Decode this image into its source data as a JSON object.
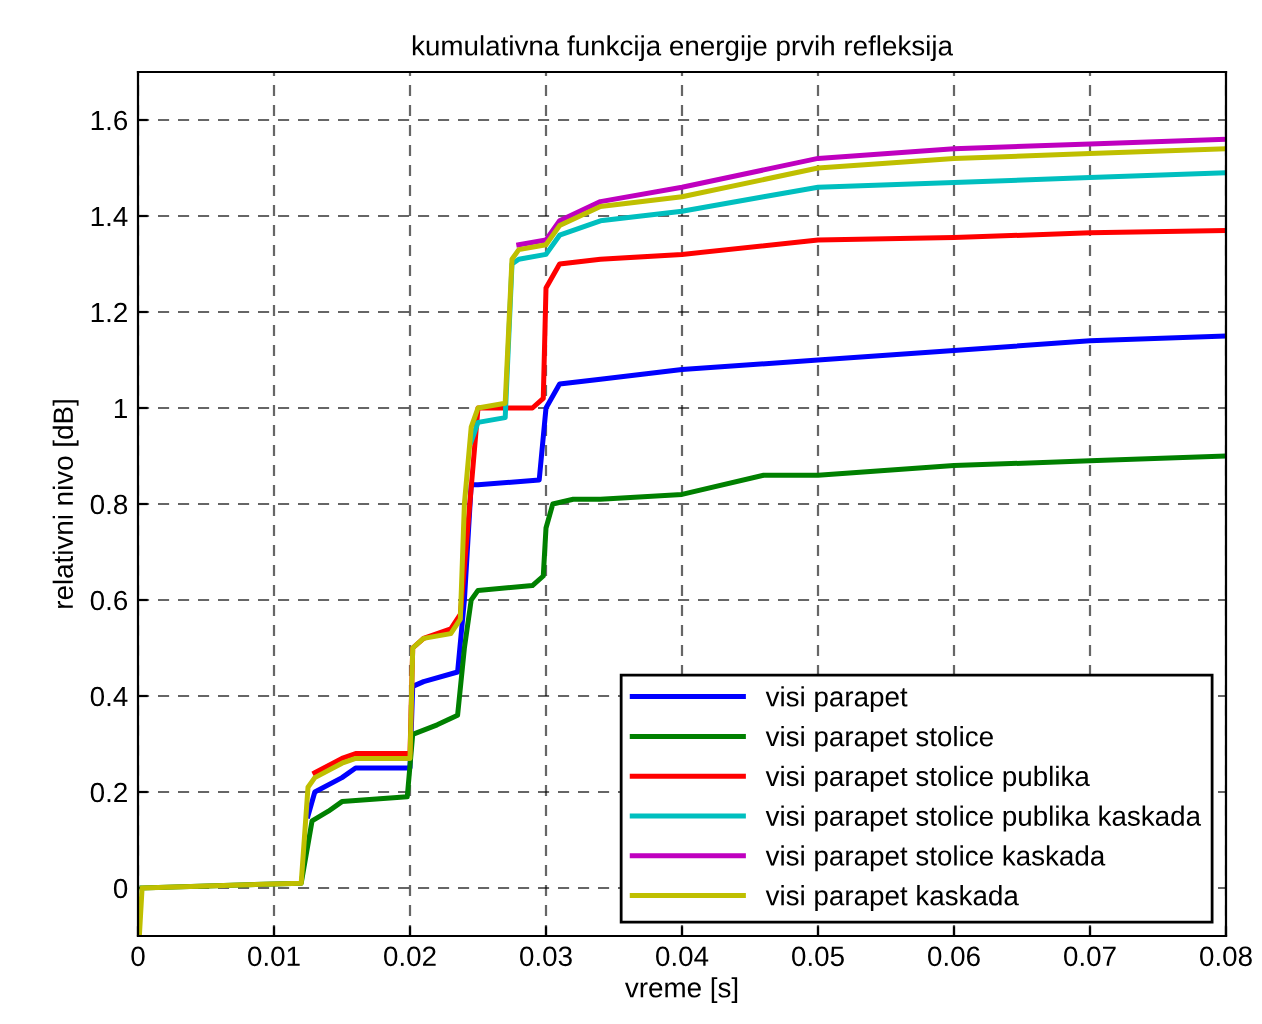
{
  "chart_data": {
    "type": "line",
    "title": "kumulativna funkcija energije prvih refleksija",
    "xlabel": "vreme [s]",
    "ylabel": "relativni nivo [dB]",
    "xlim": [
      0,
      0.08
    ],
    "ylim": [
      -0.1,
      1.7
    ],
    "xticks": [
      0,
      0.01,
      0.02,
      0.03,
      0.04,
      0.05,
      0.06,
      0.07,
      0.08
    ],
    "yticks": [
      0,
      0.2,
      0.4,
      0.6,
      0.8,
      1,
      1.2,
      1.4,
      1.6
    ],
    "grid": true,
    "legend": "bottom right",
    "line_style": "solid",
    "marker": "none",
    "series": [
      {
        "name": "visi parapet",
        "color": "#0000ff",
        "x": [
          0.0125,
          0.013,
          0.015,
          0.016,
          0.02,
          0.0202,
          0.021,
          0.0235,
          0.024,
          0.0245,
          0.025,
          0.0295,
          0.03,
          0.031,
          0.034,
          0.04,
          0.05,
          0.06,
          0.07,
          0.08
        ],
        "values": [
          0.15,
          0.2,
          0.23,
          0.25,
          0.25,
          0.42,
          0.43,
          0.45,
          0.6,
          0.84,
          0.84,
          0.85,
          1.0,
          1.05,
          1.06,
          1.08,
          1.1,
          1.12,
          1.14,
          1.15
        ]
      },
      {
        "name": "visi parapet stolice",
        "color": "#008000",
        "x": [
          0.0003,
          0.012,
          0.0128,
          0.014,
          0.015,
          0.0198,
          0.0202,
          0.022,
          0.0235,
          0.024,
          0.0245,
          0.025,
          0.029,
          0.0298,
          0.03,
          0.0305,
          0.032,
          0.034,
          0.04,
          0.046,
          0.05,
          0.06,
          0.07,
          0.08
        ],
        "values": [
          0,
          0.01,
          0.14,
          0.16,
          0.18,
          0.19,
          0.32,
          0.34,
          0.36,
          0.5,
          0.6,
          0.62,
          0.63,
          0.65,
          0.75,
          0.8,
          0.81,
          0.81,
          0.82,
          0.86,
          0.86,
          0.88,
          0.89,
          0.9
        ]
      },
      {
        "name": "visi parapet stolice publika",
        "color": "#ff0000",
        "x": [
          0.013,
          0.015,
          0.016,
          0.02,
          0.0202,
          0.021,
          0.023,
          0.0237,
          0.025,
          0.029,
          0.0298,
          0.03,
          0.031,
          0.034,
          0.04,
          0.05,
          0.06,
          0.07,
          0.08
        ],
        "values": [
          0.24,
          0.27,
          0.28,
          0.28,
          0.5,
          0.52,
          0.54,
          0.57,
          1.0,
          1.0,
          1.02,
          1.25,
          1.3,
          1.31,
          1.32,
          1.35,
          1.355,
          1.365,
          1.37
        ]
      },
      {
        "name": "visi parapet stolice publika kaskada",
        "color": "#00bfbf",
        "x": [
          0.0245,
          0.025,
          0.027,
          0.0275,
          0.028,
          0.03,
          0.031,
          0.034,
          0.04,
          0.046,
          0.05,
          0.06,
          0.07,
          0.08
        ],
        "values": [
          0.93,
          0.97,
          0.98,
          1.3,
          1.31,
          1.32,
          1.36,
          1.39,
          1.41,
          1.44,
          1.46,
          1.47,
          1.48,
          1.49
        ]
      },
      {
        "name": "visi parapet stolice kaskada",
        "color": "#bf00bf",
        "x": [
          0.028,
          0.03,
          0.031,
          0.034,
          0.04,
          0.05,
          0.06,
          0.07,
          0.08
        ],
        "values": [
          1.34,
          1.35,
          1.39,
          1.43,
          1.46,
          1.52,
          1.54,
          1.55,
          1.56
        ]
      },
      {
        "name": "visi parapet kaskada",
        "color": "#bfbf00",
        "x": [
          0.0001,
          0.0003,
          0.012,
          0.0125,
          0.013,
          0.015,
          0.016,
          0.02,
          0.0202,
          0.021,
          0.023,
          0.0237,
          0.024,
          0.0245,
          0.025,
          0.027,
          0.0275,
          0.028,
          0.03,
          0.031,
          0.034,
          0.04,
          0.05,
          0.06,
          0.07,
          0.08
        ],
        "values": [
          -0.1,
          0,
          0.01,
          0.21,
          0.23,
          0.26,
          0.27,
          0.27,
          0.5,
          0.52,
          0.53,
          0.56,
          0.8,
          0.96,
          1.0,
          1.01,
          1.31,
          1.33,
          1.34,
          1.38,
          1.42,
          1.44,
          1.5,
          1.52,
          1.53,
          1.54
        ]
      }
    ]
  }
}
